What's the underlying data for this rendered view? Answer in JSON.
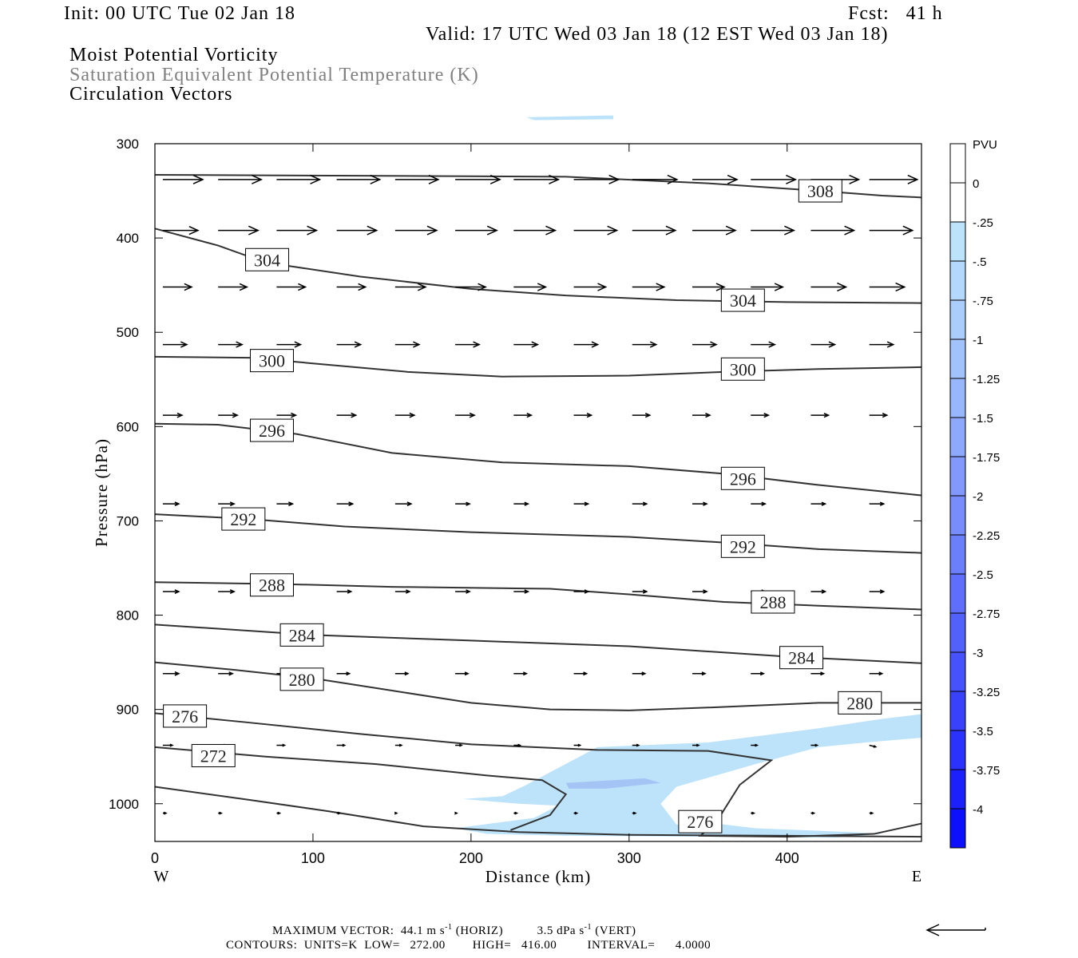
{
  "header": {
    "init": "Init: 00 UTC Tue 02 Jan 18",
    "fcst": "Fcst:   41 h",
    "valid": "Valid: 17 UTC Wed 03 Jan 18 (12 EST Wed 03 Jan 18)"
  },
  "titles": {
    "line1": "Moist Potential Vorticity",
    "line2": "Saturation Equivalent Potential Temperature (K)",
    "line3": "Circulation Vectors"
  },
  "footer": {
    "max_vector_label": "MAXIMUM VECTOR:",
    "max_vector_horiz": "44.1 m s",
    "horiz_tag": "(HORIZ)",
    "max_vector_vert": "3.5 dPa s",
    "vert_tag": "(VERT)",
    "exponent": "-1",
    "contours_line": "CONTOURS:  UNITS=K  LOW=   272.00        HIGH=   416.00         INTERVAL=      4.0000"
  },
  "chart_data": {
    "type": "cross-section",
    "xlabel": "Distance (km)",
    "ylabel": "Pressure (hPa)",
    "xlim": [
      0,
      485
    ],
    "ylim": [
      300,
      1040
    ],
    "y_inverted": true,
    "x_ticks": [
      0,
      100,
      200,
      300,
      400
    ],
    "y_ticks": [
      300,
      400,
      500,
      600,
      700,
      800,
      900,
      1000
    ],
    "x_end_labels": {
      "left": "W",
      "right": "E"
    },
    "colorbar": {
      "units": "PVU",
      "labels": [
        "0",
        "-.25",
        "-.5",
        "-.75",
        "-1",
        "-1.25",
        "-1.5",
        "-1.75",
        "-2",
        "-2.25",
        "-2.5",
        "-2.75",
        "-3",
        "-3.25",
        "-3.5",
        "-3.75",
        "-4"
      ],
      "colors": [
        "#ffffff",
        "#ffffff",
        "#bde3fb",
        "#b4d8fb",
        "#aacdfb",
        "#a2c2fb",
        "#98b6fb",
        "#8ea8fb",
        "#8299fb",
        "#788dfb",
        "#6c7ffb",
        "#606ffb",
        "#5361fb",
        "#4652fb",
        "#3941fb",
        "#2b32fb",
        "#1c20fb",
        "#0d10fb"
      ]
    },
    "contours": [
      {
        "value": 308,
        "points": [
          [
            0,
            333
          ],
          [
            130,
            334
          ],
          [
            260,
            335
          ],
          [
            350,
            342
          ],
          [
            420,
            350
          ],
          [
            460,
            355
          ],
          [
            485,
            357
          ]
        ],
        "labels": [
          [
            421,
            350
          ]
        ]
      },
      {
        "value": 304,
        "points": [
          [
            0,
            390
          ],
          [
            40,
            408
          ],
          [
            70,
            426
          ],
          [
            130,
            441
          ],
          [
            200,
            454
          ],
          [
            260,
            461
          ],
          [
            330,
            466
          ],
          [
            400,
            468
          ],
          [
            485,
            469
          ]
        ],
        "labels": [
          [
            71,
            423
          ],
          [
            372,
            466
          ]
        ]
      },
      {
        "value": 300,
        "points": [
          [
            0,
            526
          ],
          [
            60,
            527
          ],
          [
            100,
            533
          ],
          [
            160,
            542
          ],
          [
            220,
            547
          ],
          [
            300,
            546
          ],
          [
            360,
            542
          ],
          [
            420,
            539
          ],
          [
            485,
            537
          ]
        ],
        "labels": [
          [
            74,
            530
          ],
          [
            372,
            539
          ]
        ]
      },
      {
        "value": 296,
        "points": [
          [
            0,
            597
          ],
          [
            40,
            598
          ],
          [
            90,
            608
          ],
          [
            150,
            628
          ],
          [
            220,
            638
          ],
          [
            300,
            642
          ],
          [
            360,
            650
          ],
          [
            420,
            662
          ],
          [
            485,
            673
          ]
        ],
        "labels": [
          [
            74,
            604
          ],
          [
            372,
            655
          ]
        ]
      },
      {
        "value": 292,
        "points": [
          [
            0,
            693
          ],
          [
            60,
            698
          ],
          [
            120,
            706
          ],
          [
            200,
            712
          ],
          [
            300,
            717
          ],
          [
            360,
            723
          ],
          [
            420,
            730
          ],
          [
            485,
            734
          ]
        ],
        "labels": [
          [
            56,
            698
          ],
          [
            372,
            727
          ]
        ]
      },
      {
        "value": 288,
        "points": [
          [
            0,
            765
          ],
          [
            80,
            767
          ],
          [
            150,
            770
          ],
          [
            250,
            772
          ],
          [
            300,
            778
          ],
          [
            360,
            786
          ],
          [
            420,
            790
          ],
          [
            485,
            794
          ]
        ],
        "labels": [
          [
            74,
            768
          ],
          [
            391,
            786
          ]
        ]
      },
      {
        "value": 284,
        "points": [
          [
            0,
            810
          ],
          [
            100,
            821
          ],
          [
            200,
            827
          ],
          [
            300,
            833
          ],
          [
            400,
            844
          ],
          [
            485,
            851
          ]
        ],
        "labels": [
          [
            93,
            821
          ],
          [
            409,
            845
          ]
        ]
      },
      {
        "value": 280,
        "points": [
          [
            0,
            850
          ],
          [
            50,
            858
          ],
          [
            100,
            867
          ],
          [
            150,
            880
          ],
          [
            200,
            893
          ],
          [
            250,
            900
          ],
          [
            300,
            901
          ],
          [
            350,
            898
          ],
          [
            420,
            893
          ],
          [
            485,
            893
          ]
        ],
        "labels": [
          [
            93,
            868
          ],
          [
            446,
            893
          ]
        ]
      },
      {
        "value": 276,
        "points": [
          [
            0,
            904
          ],
          [
            60,
            914
          ],
          [
            130,
            926
          ],
          [
            200,
            937
          ],
          [
            280,
            943
          ],
          [
            350,
            944
          ],
          [
            390,
            954
          ],
          [
            370,
            980
          ],
          [
            355,
            1020
          ],
          [
            345,
            1034
          ],
          [
            400,
            1035
          ],
          [
            455,
            1032
          ],
          [
            485,
            1021
          ]
        ],
        "labels": [
          [
            19,
            907
          ],
          [
            345,
            1019
          ]
        ]
      },
      {
        "value": 272,
        "points": [
          [
            0,
            940
          ],
          [
            70,
            950
          ],
          [
            140,
            958
          ],
          [
            210,
            970
          ],
          [
            245,
            975
          ],
          [
            260,
            990
          ],
          [
            250,
            1012
          ],
          [
            225,
            1028
          ]
        ],
        "labels": [
          [
            37,
            949
          ]
        ]
      },
      {
        "value": 272,
        "points": [
          [
            0,
            982
          ],
          [
            60,
            996
          ],
          [
            110,
            1008
          ],
          [
            170,
            1024
          ],
          [
            230,
            1030
          ],
          [
            300,
            1033
          ],
          [
            400,
            1034
          ],
          [
            485,
            1035
          ]
        ],
        "labels": []
      }
    ],
    "mpv_shading": [
      {
        "pvu": -0.25,
        "points": [
          [
            235,
            980
          ],
          [
            280,
            940
          ],
          [
            350,
            935
          ],
          [
            420,
            920
          ],
          [
            460,
            910
          ],
          [
            485,
            905
          ],
          [
            485,
            930
          ],
          [
            450,
            935
          ],
          [
            420,
            940
          ],
          [
            380,
            958
          ],
          [
            355,
            970
          ],
          [
            330,
            982
          ],
          [
            320,
            1000
          ],
          [
            330,
            1022
          ],
          [
            340,
            1024
          ],
          [
            350,
            1020
          ],
          [
            380,
            1026
          ],
          [
            440,
            1030
          ],
          [
            460,
            1032
          ],
          [
            430,
            1036
          ],
          [
            350,
            1035
          ],
          [
            260,
            1034
          ],
          [
            210,
            1032
          ],
          [
            190,
            1026
          ],
          [
            240,
            1015
          ],
          [
            255,
            1002
          ],
          [
            230,
            1000
          ],
          [
            195,
            995
          ],
          [
            220,
            992
          ]
        ]
      },
      {
        "pvu": -0.25,
        "points": [
          [
            235,
            272
          ],
          [
            290,
            270
          ],
          [
            290,
            274
          ],
          [
            240,
            275
          ]
        ]
      },
      {
        "pvu": -0.5,
        "points": [
          [
            260,
            978
          ],
          [
            310,
            973
          ],
          [
            320,
            978
          ],
          [
            285,
            984
          ],
          [
            262,
            984
          ]
        ]
      }
    ],
    "vectors": [
      {
        "p": 338,
        "x": [
          5,
          40,
          77,
          115,
          152,
          190,
          227,
          265,
          302,
          340,
          377,
          415,
          452
        ],
        "u": [
          25,
          27,
          27,
          27,
          27,
          28,
          28,
          28,
          28,
          28,
          28,
          30,
          30
        ],
        "w": [
          0,
          0,
          0,
          0,
          0,
          0,
          0,
          0,
          0,
          0,
          0,
          0,
          0
        ]
      },
      {
        "p": 392,
        "x": [
          5,
          40,
          77,
          115,
          152,
          190,
          227,
          265,
          302,
          340,
          377,
          415,
          452
        ],
        "u": [
          22,
          25,
          25,
          25,
          26,
          26,
          26,
          27,
          27,
          27,
          27,
          27,
          27
        ],
        "w": [
          0,
          0,
          0,
          0,
          0,
          0,
          0,
          0,
          0,
          0,
          0,
          0,
          0
        ]
      },
      {
        "p": 452,
        "x": [
          5,
          40,
          77,
          115,
          152,
          190,
          227,
          265,
          302,
          340,
          377,
          415,
          452
        ],
        "u": [
          18,
          18,
          18,
          18,
          19,
          19,
          20,
          20,
          20,
          20,
          20,
          22,
          22
        ],
        "w": [
          0,
          0,
          0,
          0,
          0,
          0,
          0,
          0,
          0,
          0,
          0,
          0,
          0
        ]
      },
      {
        "p": 513,
        "x": [
          5,
          40,
          77,
          115,
          152,
          190,
          227,
          265,
          302,
          340,
          377,
          415,
          452
        ],
        "u": [
          15,
          15,
          15,
          15,
          15,
          15,
          15,
          15,
          15,
          15,
          15,
          15,
          15
        ],
        "w": [
          0,
          0,
          0,
          0,
          0,
          0,
          0,
          0,
          0,
          0,
          0,
          0,
          0
        ]
      },
      {
        "p": 588,
        "x": [
          5,
          40,
          77,
          115,
          152,
          190,
          227,
          265,
          302,
          340,
          377,
          415,
          452
        ],
        "u": [
          12,
          12,
          12,
          12,
          12,
          12,
          11,
          11,
          11,
          11,
          11,
          11,
          11
        ],
        "w": [
          0,
          0,
          0,
          0,
          0,
          0,
          0,
          0,
          0,
          0,
          0,
          0,
          0
        ]
      },
      {
        "p": 682,
        "x": [
          5,
          40,
          77,
          115,
          152,
          190,
          227,
          265,
          302,
          340,
          377,
          415,
          452
        ],
        "u": [
          10,
          10,
          10,
          10,
          10,
          9,
          9,
          9,
          9,
          9,
          9,
          9,
          9
        ],
        "w": [
          0,
          0,
          0,
          0,
          0,
          0,
          0,
          0,
          0,
          0,
          0,
          0,
          0
        ]
      },
      {
        "p": 775,
        "x": [
          5,
          40,
          77,
          115,
          152,
          190,
          227,
          265,
          302,
          340,
          377,
          415,
          452
        ],
        "u": [
          10,
          10,
          10,
          9,
          9,
          9,
          9,
          9,
          9,
          9,
          9,
          9,
          9
        ],
        "w": [
          0,
          0,
          0,
          0,
          0,
          0,
          0,
          0,
          0,
          0,
          0,
          0,
          0
        ]
      },
      {
        "p": 862,
        "x": [
          5,
          40,
          77,
          115,
          152,
          190,
          227,
          265,
          302,
          340,
          377,
          415,
          452
        ],
        "u": [
          10,
          9,
          9,
          8,
          8,
          8,
          8,
          8,
          8,
          8,
          8,
          8,
          8
        ],
        "w": [
          0,
          0,
          0,
          0,
          0,
          0,
          0,
          0,
          0,
          0,
          0,
          0,
          0
        ]
      },
      {
        "p": 938,
        "x": [
          5,
          40,
          77,
          115,
          152,
          190,
          227,
          265,
          302,
          340,
          377,
          415,
          452
        ],
        "u": [
          6,
          5,
          5,
          5,
          4,
          4,
          4,
          4,
          4,
          4,
          4,
          4,
          4
        ],
        "w": [
          0,
          0,
          0,
          0,
          0,
          0,
          0,
          0,
          0,
          0,
          0,
          0,
          -1
        ]
      },
      {
        "p": 1010,
        "x": [
          5,
          40,
          77,
          115,
          152,
          190,
          227,
          265,
          302,
          340,
          377,
          415,
          452
        ],
        "u": [
          2,
          2,
          2,
          2,
          1,
          1,
          2,
          2,
          2,
          2,
          2,
          2,
          2
        ],
        "w": [
          0,
          0,
          0,
          0,
          0,
          0,
          0,
          0,
          0,
          0,
          0,
          0,
          0
        ]
      }
    ]
  }
}
